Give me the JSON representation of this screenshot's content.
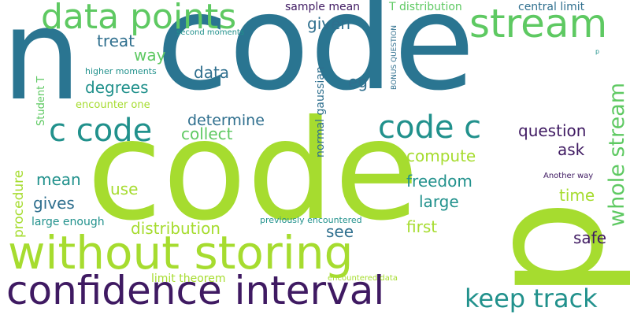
{
  "words": {
    "n": "n",
    "code_big": "code",
    "code_top": "code",
    "p": "p",
    "data_points": "data points",
    "stream": "stream",
    "without_storing": "without storing",
    "confidence_interval": "confidence interval",
    "c_code": "c code",
    "code_c": "code c",
    "keep_track": "keep track",
    "whole_stream": "whole stream",
    "sample_mean": "sample mean",
    "t_distribution": "T distribution",
    "central_limit": "central limit",
    "given": "given",
    "treat": "treat",
    "way": "way",
    "second_moments": "second moments",
    "higher_moments": "higher moments",
    "degrees": "degrees",
    "data": "data",
    "eg": "eg",
    "encounter_one": "encounter one",
    "student_t": "Student T",
    "determine": "determine",
    "collect": "collect",
    "normal_gaussian": "normal gaussian",
    "bonus_question": "BONUS QUESTION",
    "p_small": "p",
    "question": "question",
    "ask": "ask",
    "compute": "compute",
    "freedom": "freedom",
    "another_way": "Another way",
    "time": "time",
    "large": "large",
    "mean": "mean",
    "use": "use",
    "gives": "gives",
    "procedure": "procedure",
    "large_enough": "large enough",
    "previously_encountered": "previously encountered",
    "distribution": "distribution",
    "see": "see",
    "first": "first",
    "safe": "safe",
    "limit_theorem": "limit theorem",
    "encountered_data": "encountered data"
  }
}
